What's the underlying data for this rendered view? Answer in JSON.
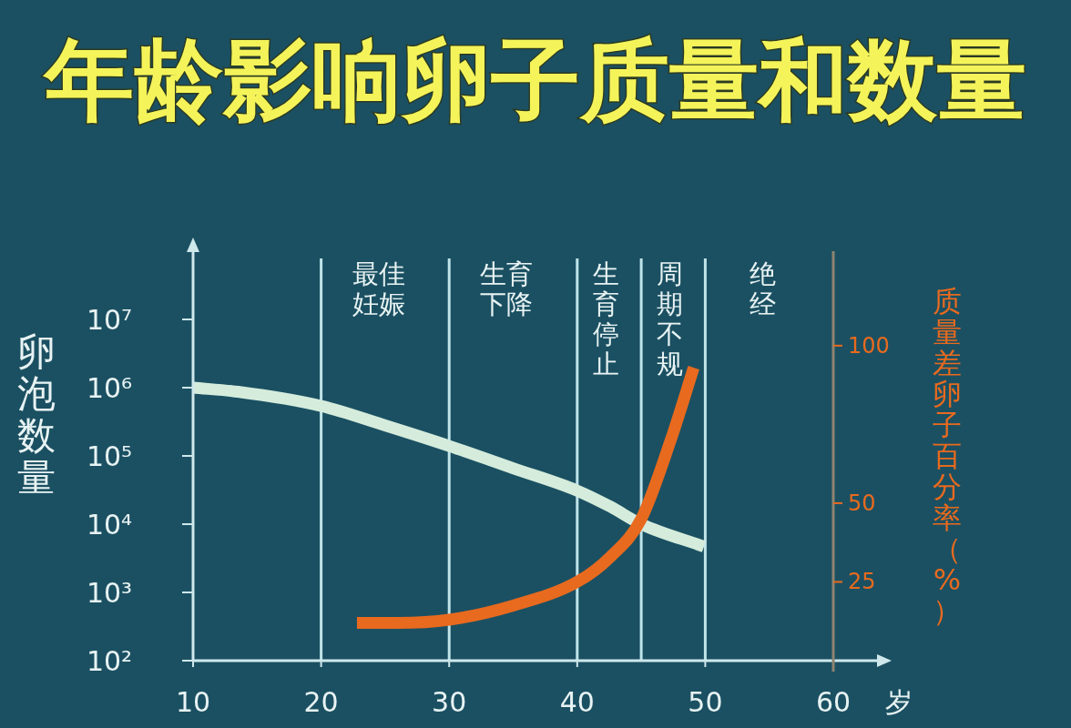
{
  "chart_data": {
    "type": "line",
    "title": "年龄影响卵子质量和数量",
    "xlabel": "岁",
    "ylabel": "卵泡数量",
    "y2label": "质量差卵子百分率（%）",
    "xlim": [
      10,
      60
    ],
    "xticks": [
      10,
      20,
      30,
      40,
      50,
      60
    ],
    "log": "y",
    "ylim": [
      100,
      100000000
    ],
    "yticks": [
      {
        "value": 100,
        "label": "10²"
      },
      {
        "value": 1000,
        "label": "10³"
      },
      {
        "value": 10000,
        "label": "10⁴"
      },
      {
        "value": 100000,
        "label": "10⁵"
      },
      {
        "value": 1000000,
        "label": "10⁶"
      },
      {
        "value": 10000000,
        "label": "10⁷"
      }
    ],
    "y2lim": [
      0,
      130
    ],
    "y2ticks": [
      25,
      50,
      100
    ],
    "line_style": "solid",
    "ref_lines": [
      {
        "axis": "x",
        "value": 20,
        "label": "最佳妊娠",
        "color": "#c0e4ea"
      },
      {
        "axis": "x",
        "value": 30,
        "label": "生育下降",
        "color": "#c0e4ea"
      },
      {
        "axis": "x",
        "value": 40,
        "label": "生育停止",
        "color": "#c0e4ea"
      },
      {
        "axis": "x",
        "value": 45,
        "label": "周期不规",
        "color": "#c0e4ea"
      },
      {
        "axis": "x",
        "value": 50,
        "label": "绝经",
        "color": "#c0e4ea"
      }
    ],
    "series": [
      {
        "color": "#d5ecdc",
        "x": [
          10,
          13.5,
          20,
          25,
          30,
          35,
          40,
          42.6,
          45,
          49.9
        ],
        "values": [
          1000000,
          870000,
          540000,
          280000,
          140000,
          66000,
          31000,
          18000,
          10000,
          4700
        ]
      },
      {
        "color": "#e86a1e",
        "axis": "y2",
        "x": [
          22.8,
          26,
          30,
          35,
          40,
          42.6,
          45,
          47.3,
          49.1
        ],
        "values": [
          12,
          12,
          13,
          17.5,
          25,
          33,
          45,
          70,
          93
        ]
      }
    ]
  }
}
